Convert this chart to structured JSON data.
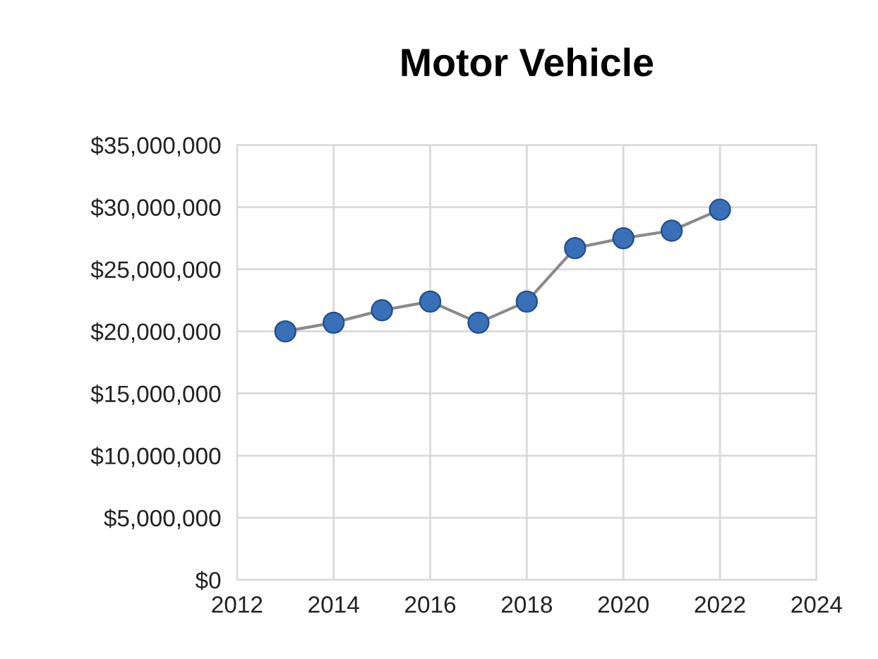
{
  "chart_data": {
    "type": "line",
    "title": "Motor Vehicle",
    "x": [
      2013,
      2014,
      2015,
      2016,
      2017,
      2018,
      2019,
      2020,
      2021,
      2022
    ],
    "series": [
      {
        "color": "#3a70b8",
        "values": [
          20000000,
          20700000,
          21700000,
          22400000,
          20700000,
          22400000,
          26700000,
          27500000,
          28100000,
          29800000
        ]
      }
    ],
    "xlim": [
      2012,
      2024
    ],
    "xticks": [
      2012,
      2014,
      2016,
      2018,
      2020,
      2022,
      2024
    ],
    "ylim": [
      0,
      35000000
    ],
    "yticks": [
      {
        "value": 0,
        "label": "$0"
      },
      {
        "value": 5000000,
        "label": "$5,000,000"
      },
      {
        "value": 10000000,
        "label": "$10,000,000"
      },
      {
        "value": 15000000,
        "label": "$15,000,000"
      },
      {
        "value": 20000000,
        "label": "$20,000,000"
      },
      {
        "value": 25000000,
        "label": "$25,000,000"
      },
      {
        "value": 30000000,
        "label": "$30,000,000"
      },
      {
        "value": 35000000,
        "label": "$35,000,000"
      }
    ],
    "grid": true,
    "marker": "circle",
    "line_style": "solid"
  }
}
